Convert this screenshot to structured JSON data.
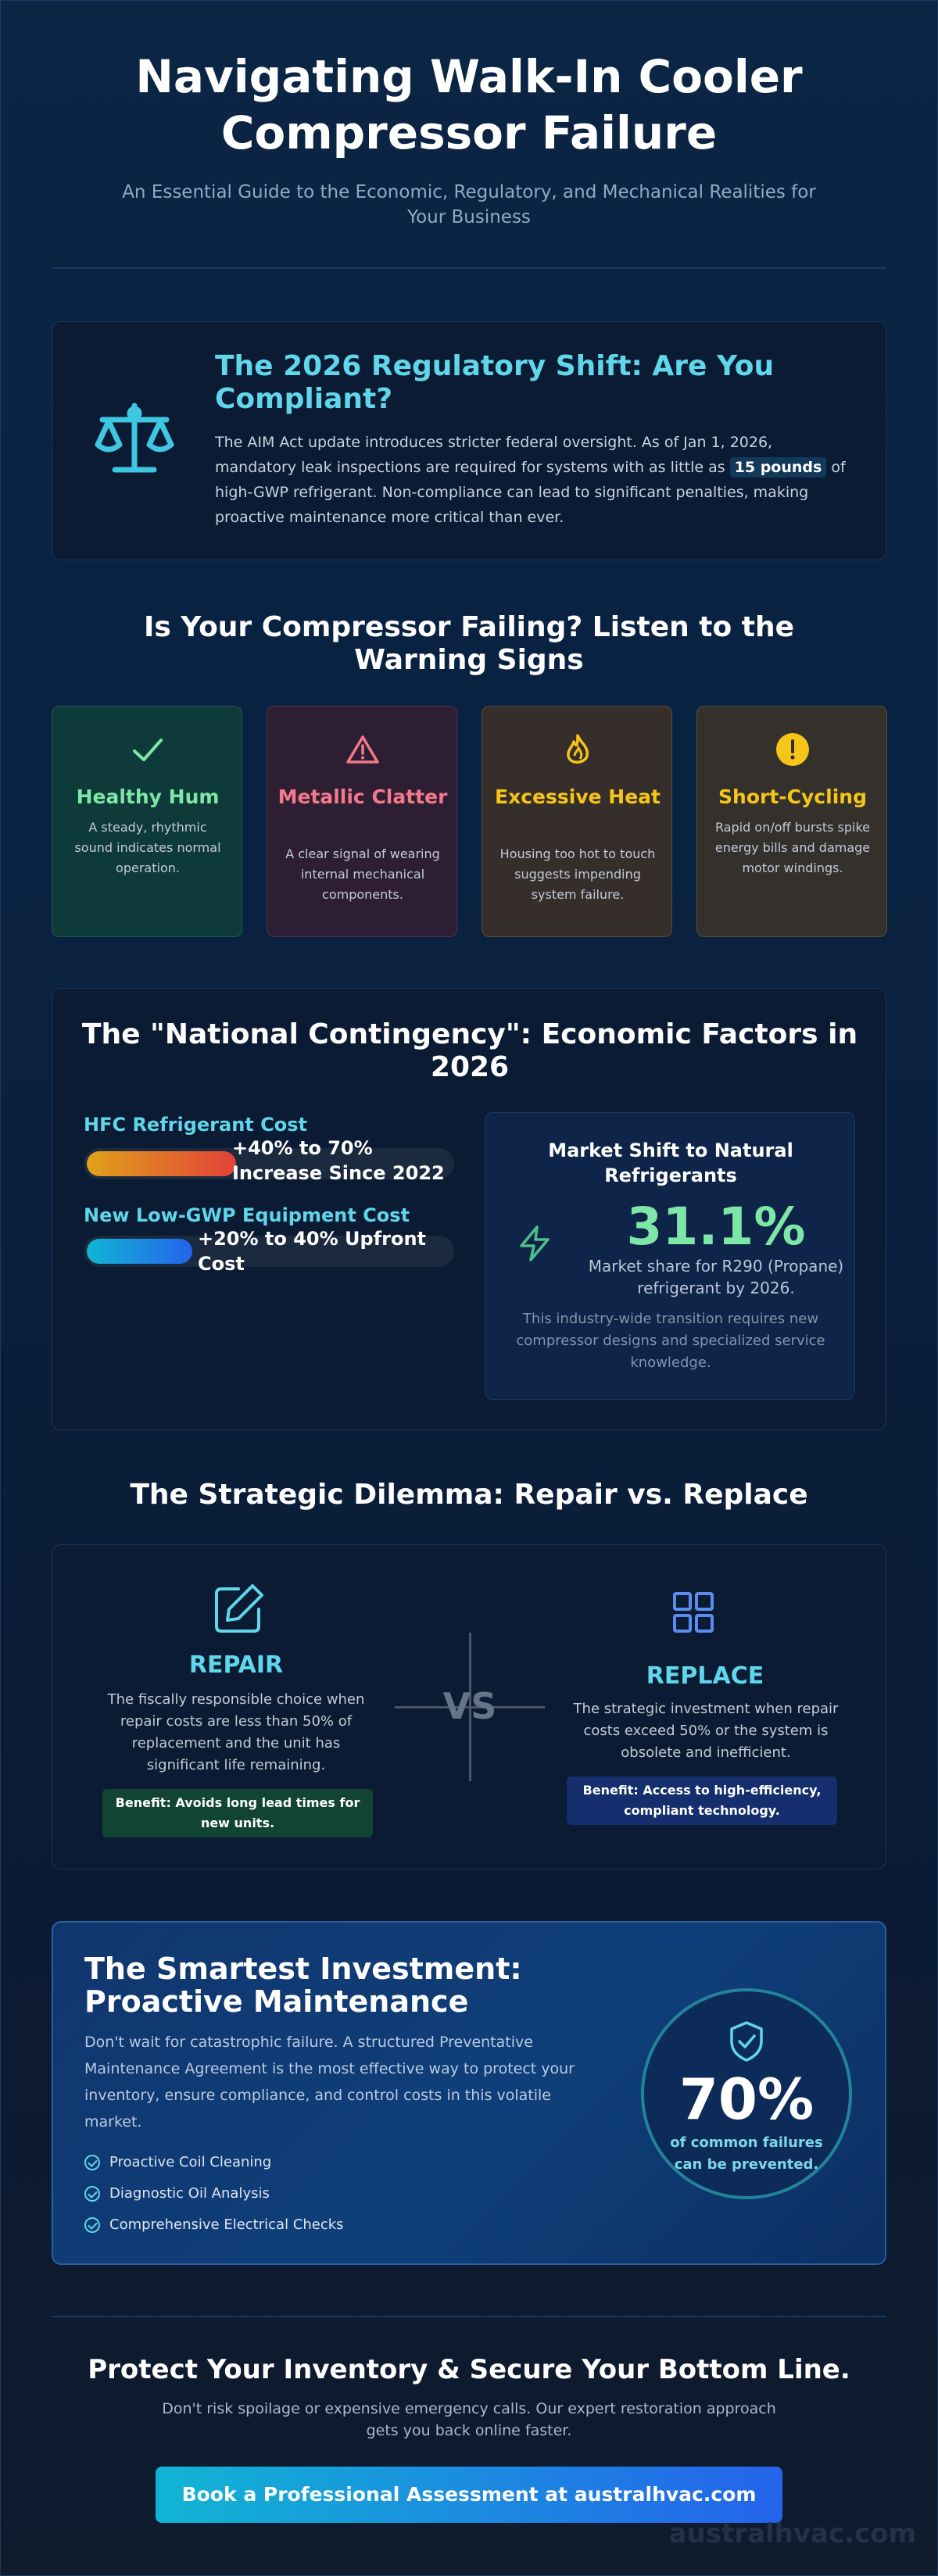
{
  "header": {
    "title_line1": "Navigating Walk-In Cooler",
    "title_line2": "Compressor Failure",
    "subtitle": "An Essential Guide to the Economic, Regulatory, and Mechanical Realities for Your Business"
  },
  "regulatory": {
    "icon": "scales-icon",
    "title": "The 2026 Regulatory Shift: Are You Compliant?",
    "text_before": "The AIM Act update introduces stricter federal oversight. As of Jan 1, 2026, mandatory leak inspections are required for systems with as little as ",
    "highlight": "15 pounds",
    "text_after": " of high-GWP refrigerant. Non-compliance can lead to significant penalties, making proactive maintenance more critical than ever."
  },
  "warning": {
    "title": "Is Your Compressor Failing? Listen to the Warning Signs",
    "signs": [
      {
        "icon": "check-icon",
        "title": "Healthy Hum",
        "desc": "A steady, rhythmic sound indicates normal operation.",
        "color": "#7ee6a6"
      },
      {
        "icon": "warning-triangle-icon",
        "title": "Metallic Clatter",
        "desc": "A clear signal of wearing internal mechanical components.",
        "color": "#f27a8a"
      },
      {
        "icon": "flame-icon",
        "title": "Excessive Heat",
        "desc": "Housing too hot to touch suggests impending system failure.",
        "color": "#f5c518"
      },
      {
        "icon": "alert-circle-icon",
        "title": "Short-Cycling",
        "desc": "Rapid on/off bursts spike energy bills and damage motor windings.",
        "color": "#f5c518"
      }
    ]
  },
  "economic": {
    "title": "The \"National Contingency\": Economic Factors in 2026",
    "bars": [
      {
        "label": "HFC Refrigerant Cost",
        "value_text": "+40% to 70% Increase Since 2022",
        "fill": 0.41
      },
      {
        "label": "New Low-GWP Equipment Cost",
        "value_text": "+20% to 40% Upfront Cost",
        "fill": 0.29
      }
    ],
    "market": {
      "title": "Market Shift to Natural Refrigerants",
      "icon": "lightning-icon",
      "percent": "31.1%",
      "caption": "Market share for R290 (Propane) refrigerant by 2026.",
      "note": "This industry-wide transition requires new compressor designs and specialized service knowledge."
    }
  },
  "dilemma": {
    "title": "The Strategic Dilemma: Repair vs. Replace",
    "vs": "VS",
    "repair": {
      "icon": "edit-icon",
      "title": "REPAIR",
      "text": "The fiscally responsible choice when repair costs are less than 50% of replacement and the unit has significant life remaining.",
      "benefit": "Benefit: Avoids long lead times for new units."
    },
    "replace": {
      "icon": "grid-icon",
      "title": "REPLACE",
      "text": "The strategic investment when repair costs exceed 50% or the system is obsolete and inefficient.",
      "benefit": "Benefit: Access to high-efficiency, compliant technology."
    }
  },
  "maintenance": {
    "title": "The Smartest Investment: Proactive Maintenance",
    "text": "Don't wait for catastrophic failure. A structured Preventative Maintenance Agreement is the most effective way to protect your inventory, ensure compliance, and control costs in this volatile market.",
    "items": [
      "Proactive Coil Cleaning",
      "Diagnostic Oil Analysis",
      "Comprehensive Electrical Checks"
    ],
    "badge_icon": "shield-check-icon",
    "badge_percent": "70%",
    "badge_caption": "of common failures can be prevented."
  },
  "footer": {
    "title": "Protect Your Inventory & Secure Your Bottom Line.",
    "subtitle": "Don't risk spoilage or expensive emergency calls. Our expert restoration approach gets you back online faster.",
    "button": "Book a Professional Assessment at australhvac.com",
    "watermark": "australhvac.com"
  }
}
